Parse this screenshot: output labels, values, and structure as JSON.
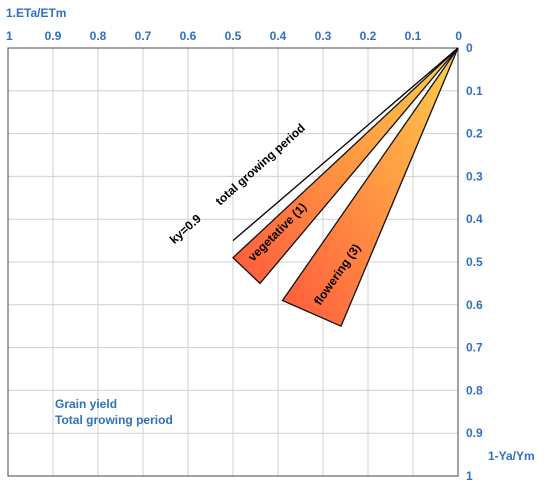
{
  "chart_data": {
    "type": "line",
    "x_axis": {
      "label": "1.ETa/ETm",
      "range": [
        1,
        0
      ],
      "reversed": true,
      "ticks": [
        1,
        0.9,
        0.8,
        0.7,
        0.6,
        0.5,
        0.4,
        0.3,
        0.2,
        0.1,
        0
      ],
      "tick_labels": [
        "1",
        "0.9",
        "0.8",
        "0.7",
        "0.6",
        "0.5",
        "0.4",
        "0.3",
        "0.2",
        "0.1",
        "0"
      ],
      "position": "top"
    },
    "y_axis": {
      "label": "1-Ya/Ym",
      "range": [
        0,
        1
      ],
      "reversed": true,
      "ticks": [
        0,
        0.1,
        0.2,
        0.3,
        0.4,
        0.5,
        0.6,
        0.7,
        0.8,
        0.9,
        1
      ],
      "tick_labels": [
        "0",
        "0.1",
        "0.2",
        "0.3",
        "0.4",
        "0.5",
        "0.6",
        "0.7",
        "0.8",
        "0.9",
        "1"
      ],
      "position": "right"
    },
    "grid": true,
    "series": [
      {
        "name": "total growing period",
        "kind": "line",
        "annotation": "ky=0.9",
        "points": [
          [
            0,
            0
          ],
          [
            0.5,
            0.45
          ]
        ],
        "color": "#000000"
      },
      {
        "name": "vegetative (1)",
        "kind": "band",
        "vertices": [
          [
            0,
            0
          ],
          [
            0.5,
            0.49
          ],
          [
            0.44,
            0.55
          ]
        ],
        "color_start": "#ffd04a",
        "color_end": "#ff5a3c"
      },
      {
        "name": "flowering (3)",
        "kind": "band",
        "vertices": [
          [
            0,
            0
          ],
          [
            0.39,
            0.59
          ],
          [
            0.26,
            0.65
          ]
        ],
        "color_start": "#ffd04a",
        "color_end": "#ff5a3c"
      }
    ],
    "note": [
      "Grain yield",
      "Total growing period"
    ]
  }
}
